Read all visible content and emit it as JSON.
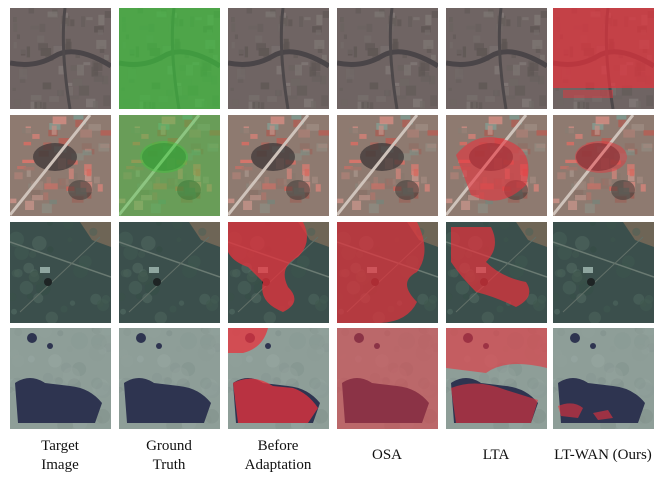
{
  "figure": {
    "columns": [
      {
        "id": "target",
        "label": "Target\nImage"
      },
      {
        "id": "gt",
        "label": "Ground\nTruth"
      },
      {
        "id": "before",
        "label": "Before\nAdaptation"
      },
      {
        "id": "osa",
        "label": "OSA"
      },
      {
        "id": "lta",
        "label": "LTA"
      },
      {
        "id": "ltwan",
        "label": "LT-WAN (Ours)"
      }
    ],
    "rows": [
      {
        "id": "row-1",
        "scene": "urban-gray"
      },
      {
        "id": "row-2",
        "scene": "urban-rooftops"
      },
      {
        "id": "row-3",
        "scene": "fields-road"
      },
      {
        "id": "row-4",
        "scene": "forest-patch"
      }
    ],
    "colors": {
      "prediction_overlay": "#e8323c",
      "ground_truth_overlay": "#3cc83c"
    }
  }
}
